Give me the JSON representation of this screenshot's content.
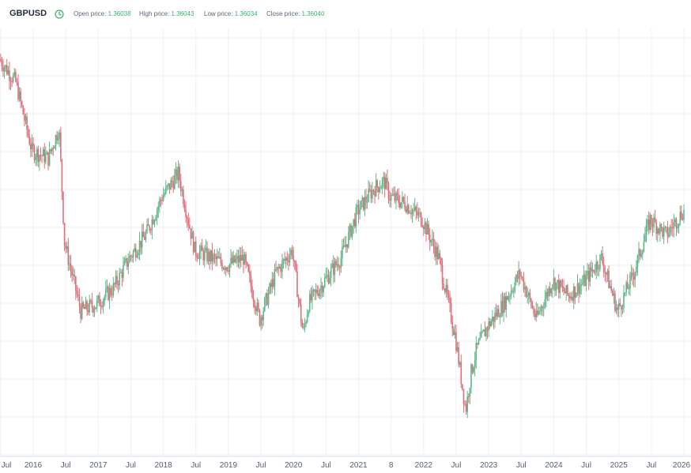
{
  "header": {
    "symbol": "GBPUSD",
    "clock_icon": "clock-icon",
    "stats": [
      {
        "label": "Open price:",
        "value": "1.36038"
      },
      {
        "label": "High price:",
        "value": "1.36043"
      },
      {
        "label": "Low price:",
        "value": "1.36034"
      },
      {
        "label": "Close price:",
        "value": "1.36040"
      }
    ]
  },
  "colors": {
    "up": "#5cb88a",
    "down": "#df6f7b",
    "grid": "#eef0f3",
    "axis_text": "#55606e",
    "accent": "#38b26a"
  },
  "chart_data": {
    "type": "line",
    "subtype": "candlestick",
    "title": "GBPUSD",
    "xlabel": "",
    "ylabel": "",
    "grid": true,
    "x_ticks": [
      "Jul",
      "2016",
      "Jul",
      "2017",
      "Jul",
      "2018",
      "Jul",
      "2019",
      "Jul",
      "2020",
      "Jul",
      "2021",
      "8",
      "2022",
      "Jul",
      "2023",
      "Jul",
      "2024",
      "Jul",
      "2025",
      "Jul",
      "2026"
    ],
    "y_scale": "approx 1.06 (bottom) to 1.59 (top), no y tick labels shown",
    "ylim": [
      1.04,
      1.6
    ],
    "series": [
      {
        "x": [
          "2015-07",
          "2015-10",
          "2016-01",
          "2016-04",
          "2016-06",
          "2016-07",
          "2016-10",
          "2017-01",
          "2017-04",
          "2017-07",
          "2017-10",
          "2018-01",
          "2018-04",
          "2018-07",
          "2018-10",
          "2019-01",
          "2019-04",
          "2019-07",
          "2019-10",
          "2020-01",
          "2020-03",
          "2020-04",
          "2020-07",
          "2020-10",
          "2021-01",
          "2021-04",
          "2021-06",
          "2021-07",
          "2021-10",
          "2022-01",
          "2022-04",
          "2022-07",
          "2022-09",
          "2022-10",
          "2022-11",
          "2023-01",
          "2023-04",
          "2023-07",
          "2023-10",
          "2024-01",
          "2024-04",
          "2024-07",
          "2024-10",
          "2025-01",
          "2025-04",
          "2025-07",
          "2025-10",
          "2026-01"
        ],
        "values": [
          1.56,
          1.53,
          1.44,
          1.43,
          1.47,
          1.32,
          1.23,
          1.24,
          1.26,
          1.3,
          1.33,
          1.38,
          1.41,
          1.31,
          1.3,
          1.29,
          1.3,
          1.22,
          1.28,
          1.31,
          1.2,
          1.24,
          1.27,
          1.3,
          1.36,
          1.39,
          1.4,
          1.38,
          1.37,
          1.35,
          1.3,
          1.2,
          1.1,
          1.15,
          1.18,
          1.21,
          1.24,
          1.28,
          1.22,
          1.27,
          1.25,
          1.27,
          1.3,
          1.23,
          1.28,
          1.35,
          1.33,
          1.36
        ]
      }
    ]
  }
}
